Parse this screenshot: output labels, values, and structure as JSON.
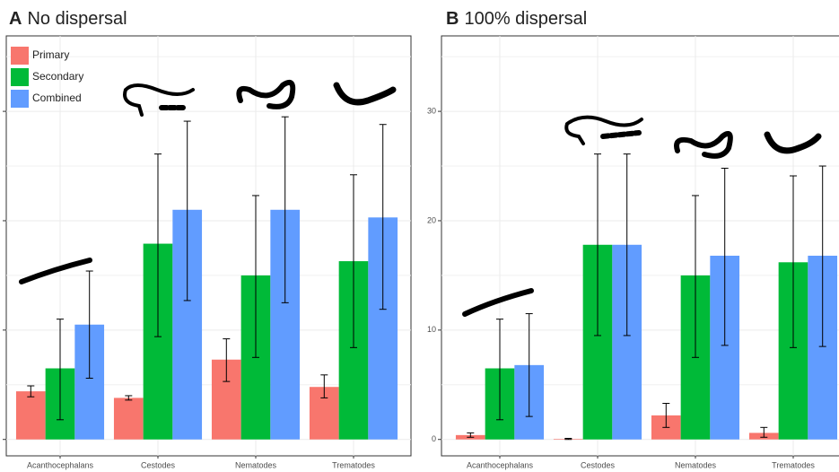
{
  "chart_data": [
    {
      "type": "bar",
      "title": "A",
      "subtitle": "No dispersal",
      "categories": [
        "Acanthocephalans",
        "Cestodes",
        "Nematodes",
        "Trematodes"
      ],
      "series": [
        {
          "name": "Primary",
          "color": "#F8766D",
          "values": [
            4.4,
            3.8,
            7.3,
            4.8
          ],
          "lower": [
            3.9,
            3.6,
            5.3,
            3.8
          ],
          "upper": [
            4.9,
            4.0,
            9.2,
            5.9
          ]
        },
        {
          "name": "Secondary",
          "color": "#00BA38",
          "values": [
            6.5,
            17.9,
            15.0,
            16.3
          ],
          "lower": [
            1.8,
            9.4,
            7.5,
            8.4
          ],
          "upper": [
            11.0,
            26.1,
            22.3,
            24.2
          ]
        },
        {
          "name": "Combined",
          "color": "#619CFF",
          "values": [
            10.5,
            21.0,
            21.0,
            20.3
          ],
          "lower": [
            5.6,
            12.7,
            12.5,
            11.9
          ],
          "upper": [
            15.4,
            29.1,
            29.5,
            28.8
          ]
        }
      ],
      "ylim": [
        -1.5,
        36.9
      ],
      "yticks": [
        0,
        10,
        20,
        30
      ],
      "tick_labels": false,
      "grid": true,
      "legend": "top-left"
    },
    {
      "type": "bar",
      "title": "B",
      "subtitle": "100% dispersal",
      "categories": [
        "Acanthocephalans",
        "Cestodes",
        "Nematodes",
        "Trematodes"
      ],
      "series": [
        {
          "name": "Primary",
          "color": "#F8766D",
          "values": [
            0.4,
            0.05,
            2.2,
            0.6
          ],
          "lower": [
            0.2,
            0.0,
            1.1,
            0.2
          ],
          "upper": [
            0.6,
            0.1,
            3.3,
            1.1
          ]
        },
        {
          "name": "Secondary",
          "color": "#00BA38",
          "values": [
            6.5,
            17.8,
            15.0,
            16.2
          ],
          "lower": [
            1.8,
            9.5,
            7.5,
            8.4
          ],
          "upper": [
            11.0,
            26.1,
            22.3,
            24.1
          ]
        },
        {
          "name": "Combined",
          "color": "#619CFF",
          "values": [
            6.8,
            17.8,
            16.8,
            16.8
          ],
          "lower": [
            2.1,
            9.5,
            8.6,
            8.5
          ],
          "upper": [
            11.5,
            26.1,
            24.8,
            25.0
          ]
        }
      ],
      "ylim": [
        -1.5,
        36.9
      ],
      "yticks": [
        0,
        10,
        20,
        30
      ],
      "tick_labels": true,
      "grid": true
    }
  ]
}
